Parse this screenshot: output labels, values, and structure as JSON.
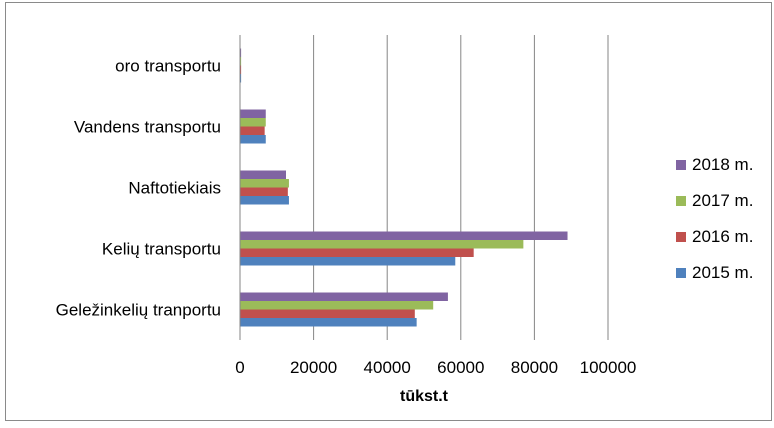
{
  "chart_data": {
    "type": "bar",
    "orientation": "horizontal",
    "categories": [
      "Geležinkelių tranportu",
      "Kelių transportu",
      "Naftotiekiais",
      "Vandens transportu",
      "oro transportu"
    ],
    "series": [
      {
        "name": "2015 m.",
        "color": "#4f81bd",
        "values": [
          48000,
          58500,
          13300,
          7000,
          300
        ]
      },
      {
        "name": "2016 m.",
        "color": "#c0504d",
        "values": [
          47500,
          63500,
          13000,
          6700,
          300
        ]
      },
      {
        "name": "2017 m.",
        "color": "#9bbb59",
        "values": [
          52500,
          77000,
          13300,
          7000,
          300
        ]
      },
      {
        "name": "2018 m.",
        "color": "#8064a2",
        "values": [
          56500,
          89000,
          12500,
          7000,
          300
        ]
      }
    ],
    "xlim": [
      0,
      100000
    ],
    "xticks": [
      "0",
      "20000",
      "40000",
      "60000",
      "80000",
      "100000"
    ],
    "xlabel": "tūkst.t",
    "grid": true,
    "legend_position": "right"
  }
}
